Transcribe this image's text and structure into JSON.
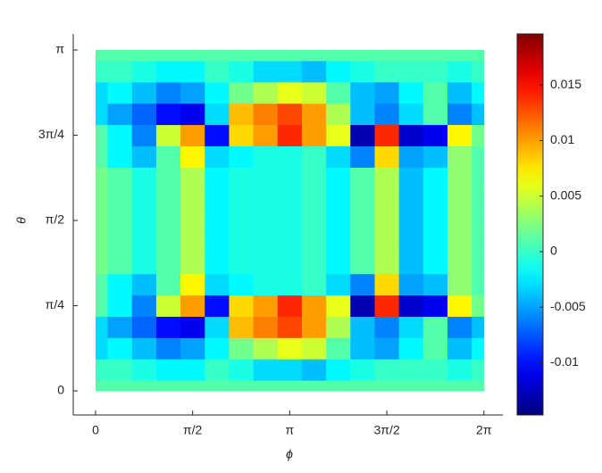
{
  "chart_data": {
    "type": "heatmap",
    "colormap": "jet",
    "xlabel": "ϕ",
    "ylabel": "θ",
    "x": [
      0,
      0.3927,
      0.7854,
      1.1781,
      1.5708,
      1.9635,
      2.3562,
      2.7489,
      3.1416,
      3.5343,
      3.927,
      4.3197,
      4.7124,
      5.1051,
      5.4978,
      5.8905,
      6.2832
    ],
    "y": [
      0,
      0.19635,
      0.3927,
      0.58905,
      0.7854,
      0.98175,
      1.1781,
      1.37445,
      1.5708,
      1.76715,
      1.9635,
      2.15985,
      2.3562,
      2.55255,
      2.7489,
      2.94525,
      3.1416
    ],
    "values": [
      [
        0.001,
        0.001,
        0.001,
        0.001,
        0.001,
        0.001,
        0.001,
        0.001,
        0.001,
        0.001,
        0.001,
        0.001,
        0.001,
        0.001,
        0.001,
        0.001,
        0.001
      ],
      [
        0,
        0,
        -0.001,
        -0.002,
        -0.002,
        0,
        -0.001,
        -0.003,
        -0.003,
        -0.004,
        -0.002,
        -0.001,
        0,
        0,
        0,
        -0.001,
        0
      ],
      [
        -0.003,
        -0.002,
        -0.004,
        -0.006,
        -0.005,
        -0.002,
        0.002,
        0.004,
        0.006,
        0.005,
        0.001,
        -0.004,
        -0.005,
        -0.002,
        0.001,
        -0.004,
        -0.002
      ],
      [
        -0.003,
        -0.005,
        -0.007,
        -0.01,
        -0.011,
        -0.003,
        0.009,
        0.011,
        0.013,
        0.01,
        0.004,
        -0.004,
        -0.006,
        -0.003,
        0.001,
        -0.006,
        -0.004
      ],
      [
        0.001,
        -0.002,
        -0.006,
        0.005,
        0.01,
        -0.01,
        0.008,
        0.01,
        0.014,
        0.01,
        0.006,
        -0.013,
        0.014,
        -0.012,
        -0.011,
        0.007,
        0.002
      ],
      [
        0.001,
        -0.002,
        -0.004,
        0.001,
        0.007,
        -0.003,
        -0.002,
        -0.001,
        -0.001,
        0,
        -0.003,
        -0.006,
        0.008,
        -0.005,
        -0.004,
        0.003,
        0.001
      ],
      [
        0.002,
        0.001,
        -0.001,
        0.001,
        0.004,
        -0.002,
        -0.001,
        -0.001,
        -0.001,
        0,
        -0.002,
        0.001,
        0.004,
        -0.004,
        -0.002,
        0.003,
        0.001
      ],
      [
        0.002,
        0.001,
        -0.001,
        0.001,
        0.004,
        -0.002,
        -0.001,
        -0.001,
        -0.001,
        0,
        -0.002,
        0.001,
        0.004,
        -0.004,
        -0.002,
        0.003,
        0.001
      ],
      [
        0.002,
        0.001,
        -0.001,
        0.001,
        0.004,
        -0.002,
        -0.001,
        -0.001,
        -0.001,
        0,
        -0.002,
        0.001,
        0.004,
        -0.004,
        -0.002,
        0.003,
        0.001
      ],
      [
        0.002,
        0.001,
        -0.001,
        0.001,
        0.004,
        -0.002,
        -0.001,
        -0.001,
        -0.001,
        0,
        -0.002,
        0.001,
        0.004,
        -0.004,
        -0.002,
        0.003,
        0.001
      ],
      [
        0.002,
        0.001,
        -0.001,
        0.001,
        0.004,
        -0.002,
        -0.001,
        -0.001,
        -0.001,
        0,
        -0.002,
        0.001,
        0.004,
        -0.004,
        -0.002,
        0.003,
        0.001
      ],
      [
        0.001,
        -0.002,
        -0.004,
        0.001,
        0.007,
        -0.003,
        -0.002,
        -0.001,
        -0.001,
        0,
        -0.003,
        -0.006,
        0.008,
        -0.005,
        -0.004,
        0.003,
        0.001
      ],
      [
        0.001,
        -0.002,
        -0.006,
        0.005,
        0.01,
        -0.01,
        0.008,
        0.01,
        0.014,
        0.01,
        0.006,
        -0.013,
        0.014,
        -0.012,
        -0.011,
        0.007,
        0.002
      ],
      [
        -0.003,
        -0.005,
        -0.007,
        -0.01,
        -0.011,
        -0.003,
        0.009,
        0.011,
        0.013,
        0.01,
        0.004,
        -0.004,
        -0.006,
        -0.003,
        0.001,
        -0.006,
        -0.004
      ],
      [
        -0.003,
        -0.002,
        -0.004,
        -0.006,
        -0.005,
        -0.002,
        0.002,
        0.004,
        0.006,
        0.005,
        0.001,
        -0.004,
        -0.005,
        -0.002,
        0.001,
        -0.004,
        -0.002
      ],
      [
        0,
        0,
        -0.001,
        -0.002,
        -0.002,
        0,
        -0.001,
        -0.003,
        -0.003,
        -0.004,
        -0.002,
        -0.001,
        0,
        0,
        0,
        -0.001,
        0
      ],
      [
        0.001,
        0.001,
        0.001,
        0.001,
        0.001,
        0.001,
        0.001,
        0.001,
        0.001,
        0.001,
        0.001,
        0.001,
        0.001,
        0.001,
        0.001,
        0.001,
        0.001
      ]
    ],
    "xlim": [
      -0.361,
      6.59
    ],
    "ylim": [
      -0.222,
      3.29
    ],
    "xticks": [
      0,
      {
        "value": 1.5708,
        "label": "π/2"
      },
      {
        "value": 3.1416,
        "label": "π"
      },
      {
        "value": 4.7124,
        "label": "3π/2"
      },
      {
        "value": 6.2832,
        "label": "2π"
      }
    ],
    "yticks": [
      0,
      {
        "value": 0.7854,
        "label": "π/4"
      },
      {
        "value": 1.5708,
        "label": "π/2"
      },
      {
        "value": 2.3562,
        "label": "3π/4"
      },
      {
        "value": 3.1416,
        "label": "π"
      }
    ],
    "clim": [
      -0.0147,
      0.0196
    ],
    "cticks": [
      -0.01,
      -0.005,
      0,
      0.005,
      0.01,
      0.015
    ]
  }
}
